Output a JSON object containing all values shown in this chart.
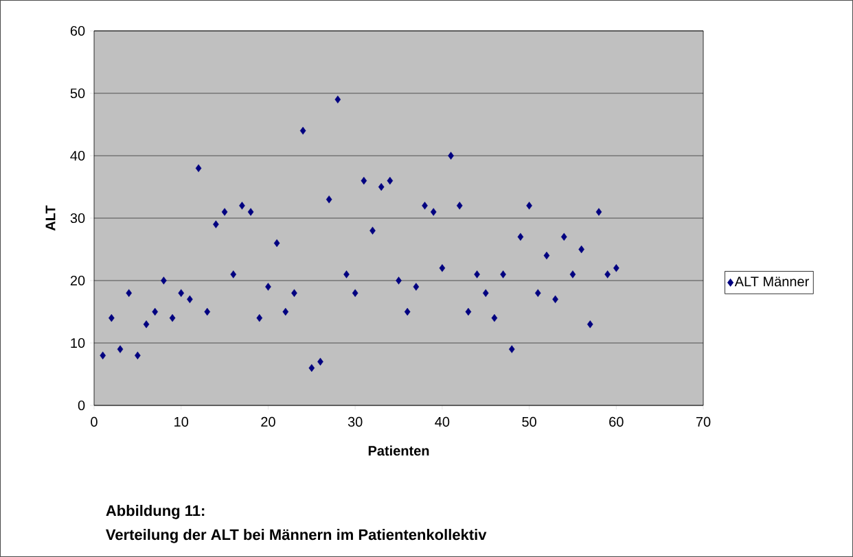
{
  "chart_data": {
    "type": "scatter",
    "xlabel": "Patienten",
    "ylabel": "ALT",
    "x": [
      1,
      2,
      3,
      4,
      5,
      6,
      7,
      8,
      9,
      10,
      11,
      12,
      13,
      14,
      15,
      16,
      17,
      18,
      19,
      20,
      21,
      22,
      23,
      24,
      25,
      26,
      27,
      28,
      29,
      30,
      31,
      32,
      33,
      34,
      35,
      36,
      37,
      38,
      39,
      40,
      41,
      42,
      43,
      44,
      45,
      46,
      47,
      48,
      49,
      50,
      51,
      52,
      53,
      54,
      55,
      56,
      57,
      58,
      59,
      60
    ],
    "series": [
      {
        "name": "ALT Männer",
        "color": "#000080",
        "values": [
          8,
          14,
          9,
          18,
          8,
          13,
          15,
          20,
          14,
          18,
          17,
          38,
          15,
          29,
          31,
          21,
          32,
          31,
          14,
          19,
          26,
          15,
          18,
          44,
          6,
          7,
          33,
          49,
          21,
          18,
          36,
          28,
          35,
          36,
          20,
          15,
          19,
          32,
          31,
          22,
          40,
          32,
          15,
          21,
          18,
          14,
          21,
          9,
          27,
          32,
          18,
          24,
          17,
          27,
          21,
          25,
          13,
          31,
          21,
          22
        ]
      }
    ],
    "xlim": [
      0,
      70
    ],
    "ylim": [
      0,
      60
    ],
    "xticks": [
      0,
      10,
      20,
      30,
      40,
      50,
      60,
      70
    ],
    "yticks": [
      0,
      10,
      20,
      30,
      40,
      50,
      60
    ],
    "grid": "y",
    "legend": "right",
    "marker": "diamond",
    "annotations": [
      "Abbildung 11:",
      "Verteilung der ALT bei Männern im Patientenkollektiv"
    ]
  }
}
